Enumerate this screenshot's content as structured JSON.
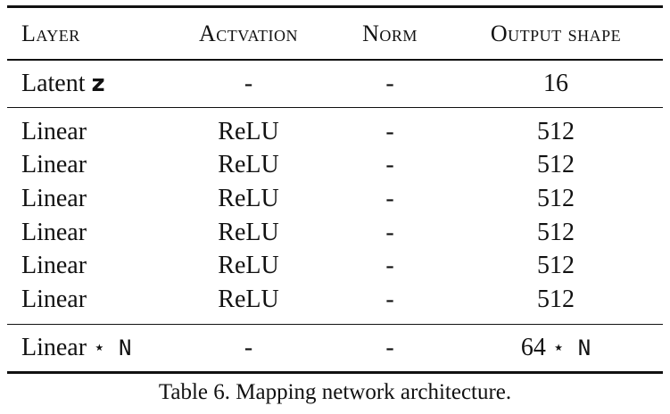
{
  "table": {
    "headers": [
      "Layer",
      "Actvation",
      "Norm",
      "Output shape"
    ],
    "latent_row": {
      "layer_text": "Latent",
      "layer_symbol": "z",
      "activation": "-",
      "norm": "-",
      "output": "16"
    },
    "linear_rows": [
      {
        "layer": "Linear",
        "activation": "ReLU",
        "norm": "-",
        "output": "512"
      },
      {
        "layer": "Linear",
        "activation": "ReLU",
        "norm": "-",
        "output": "512"
      },
      {
        "layer": "Linear",
        "activation": "ReLU",
        "norm": "-",
        "output": "512"
      },
      {
        "layer": "Linear",
        "activation": "ReLU",
        "norm": "-",
        "output": "512"
      },
      {
        "layer": "Linear",
        "activation": "ReLU",
        "norm": "-",
        "output": "512"
      },
      {
        "layer": "Linear",
        "activation": "ReLU",
        "norm": "-",
        "output": "512"
      }
    ],
    "final_row": {
      "layer_text": "Linear",
      "layer_suffix": "⋆ N",
      "activation": "-",
      "norm": "-",
      "output_text": "64",
      "output_suffix": "⋆ N"
    }
  },
  "caption": "Table 6. Mapping network architecture."
}
